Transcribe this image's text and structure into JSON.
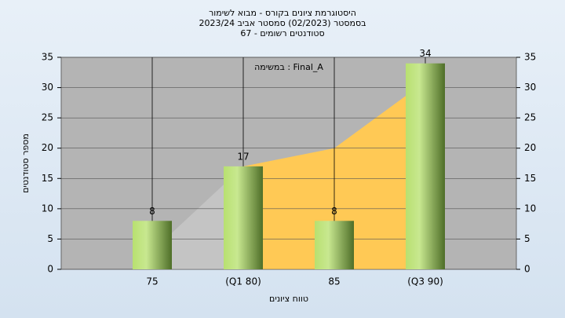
{
  "chart_data": {
    "type": "bar",
    "title": [
      "היסטוגרמת ציונים בקורס - מבוא לשימור",
      "בסמסטר  (02/2023)  סמסטר אביב 2023/24",
      "סטודנטים רשומים - 67"
    ],
    "annotation": "Final_A : במשימה",
    "x_label": "טווח ציונים",
    "y_label": "מספר סטודנטים",
    "categories": [
      "75",
      "(Q1 80)",
      "85",
      "(Q3 90)"
    ],
    "series": [
      {
        "type": "bar",
        "color": "#8fbf3a",
        "values": [
          8,
          17,
          8,
          34
        ]
      },
      {
        "type": "area",
        "colors": [
          "#c4c4c4",
          "#ffc955"
        ],
        "values": [
          3,
          17,
          20,
          31
        ]
      }
    ],
    "ylim": [
      0,
      35
    ],
    "yticks": [
      0,
      5,
      10,
      15,
      20,
      25,
      30,
      35
    ],
    "y2lim": [
      0,
      35
    ],
    "y2ticks": [
      0,
      5,
      10,
      15,
      20,
      25,
      30,
      35
    ],
    "grid": true
  }
}
